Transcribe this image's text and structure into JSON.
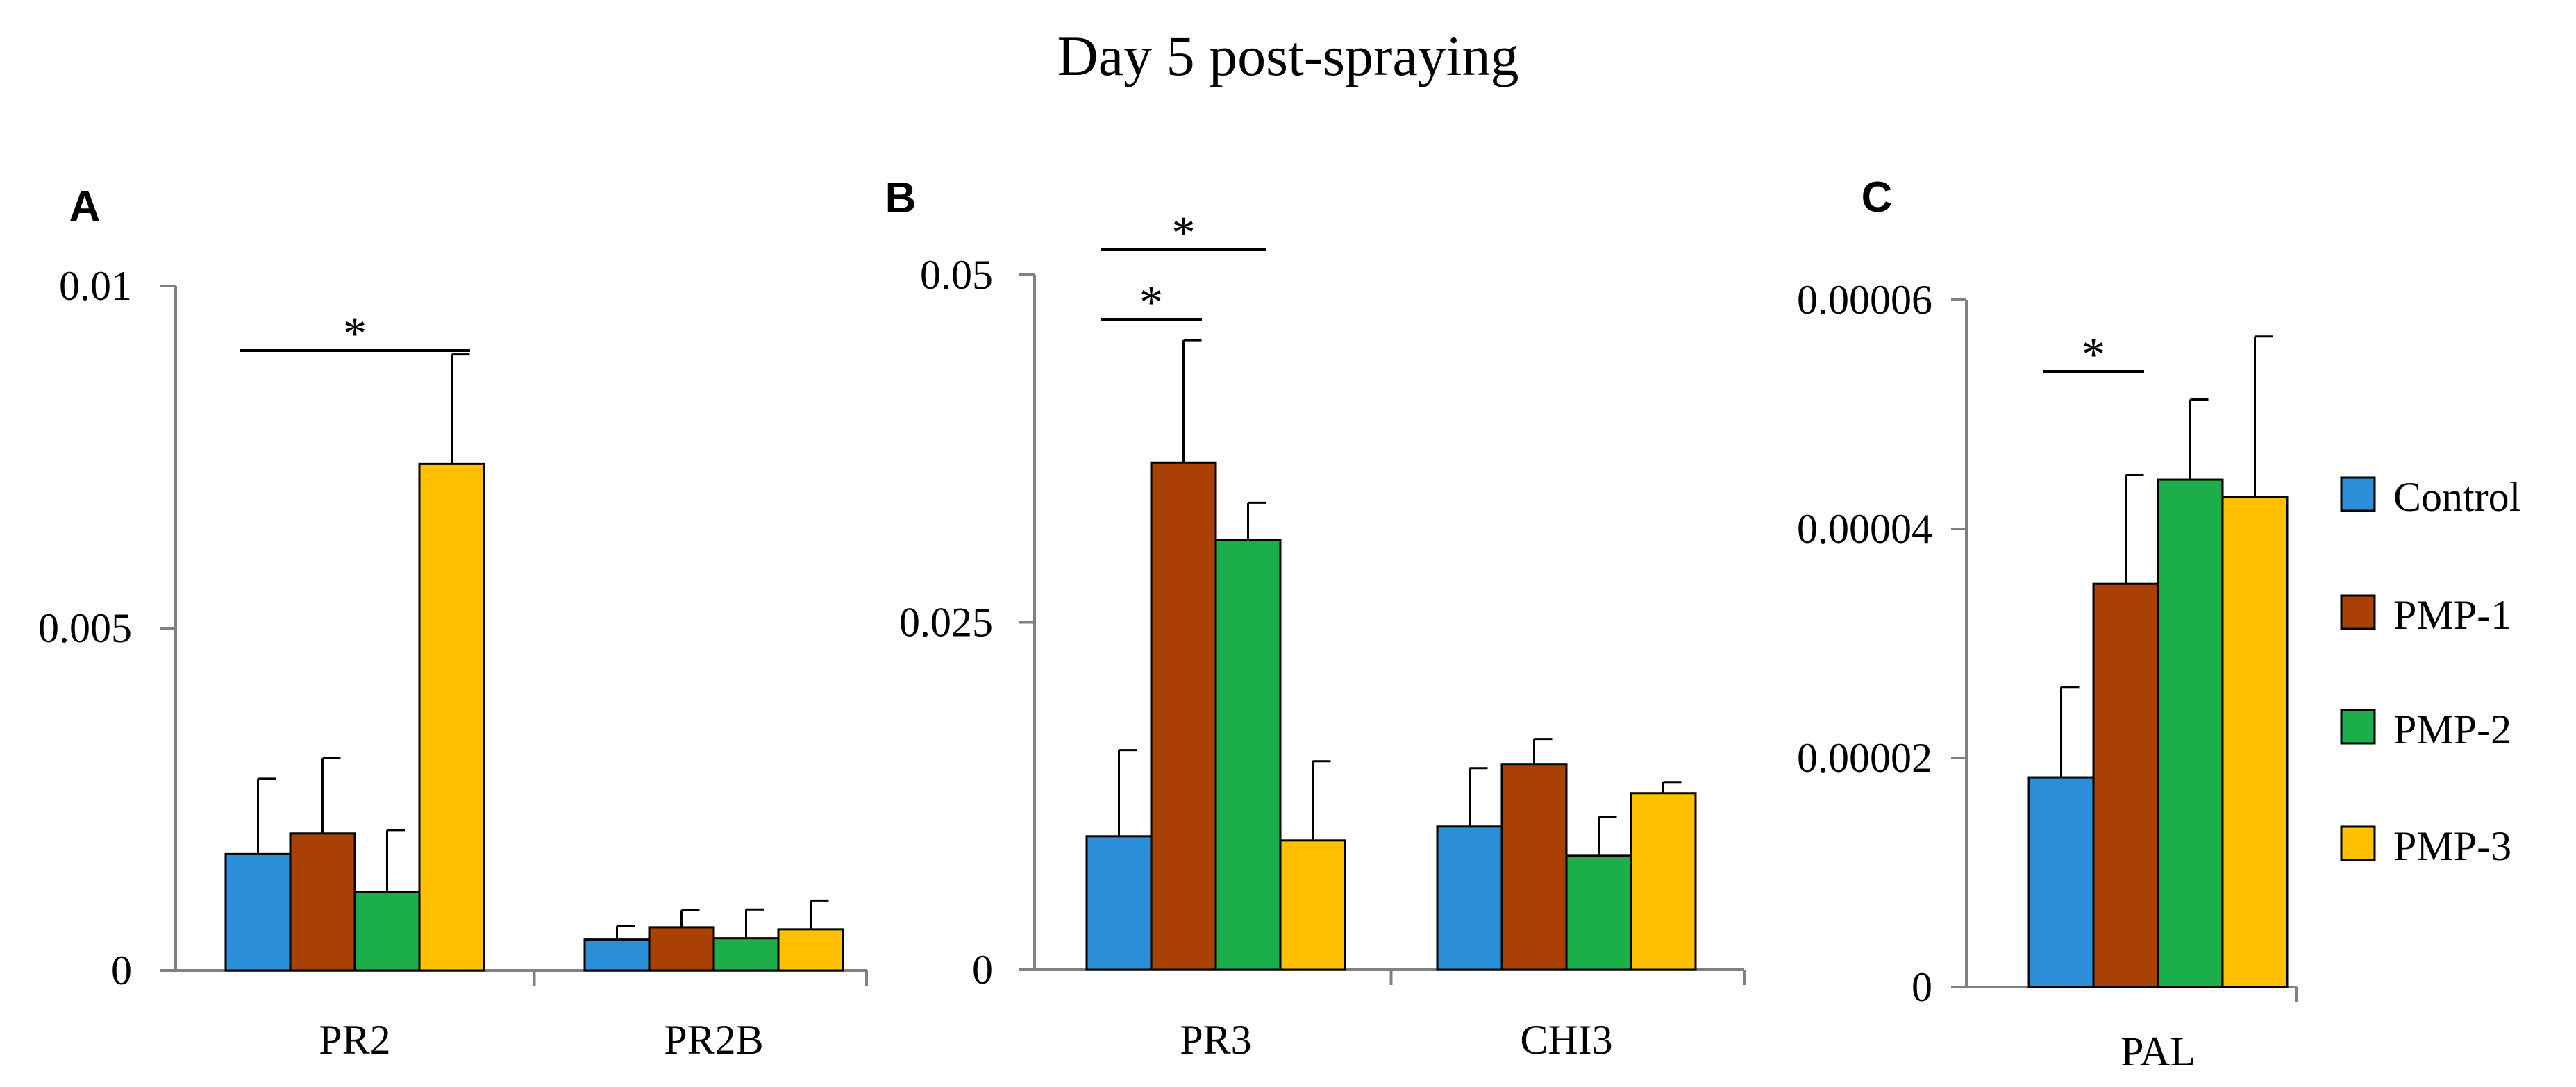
{
  "title": "Day 5 post-spraying",
  "legend": {
    "placement": "right",
    "entries": [
      {
        "name": "Control",
        "color": "#2B8FD8"
      },
      {
        "name": "PMP-1",
        "color": "#A94104"
      },
      {
        "name": "PMP-2",
        "color": "#1BAE4A"
      },
      {
        "name": "PMP-3",
        "color": "#FFC000"
      }
    ]
  },
  "chart_data": [
    {
      "panel_label": "A",
      "type": "bar",
      "categories": [
        "PR2",
        "PR2B"
      ],
      "ylim": [
        0,
        0.01
      ],
      "yticks": [
        "0",
        "0.005",
        "0.01"
      ],
      "grid": false,
      "series": [
        {
          "name": "Control",
          "values": [
            0.0017,
            0.00045
          ],
          "errors": [
            0.0011,
            0.0002
          ]
        },
        {
          "name": "PMP-1",
          "values": [
            0.002,
            0.00063
          ],
          "errors": [
            0.0011,
            0.00025
          ]
        },
        {
          "name": "PMP-2",
          "values": [
            0.00115,
            0.00047
          ],
          "errors": [
            0.0009,
            0.00042
          ]
        },
        {
          "name": "PMP-3",
          "values": [
            0.0074,
            0.0006
          ],
          "errors": [
            0.0016,
            0.00042
          ]
        }
      ],
      "significance": [
        {
          "category": "PR2",
          "from": "Control",
          "to": "PMP-3",
          "label": "*"
        }
      ]
    },
    {
      "panel_label": "B",
      "type": "bar",
      "categories": [
        "PR3",
        "CHI3"
      ],
      "ylim": [
        0,
        0.05
      ],
      "yticks": [
        "0",
        "0.025",
        "0.05"
      ],
      "grid": false,
      "series": [
        {
          "name": "Control",
          "values": [
            0.0096,
            0.0103
          ],
          "errors": [
            0.0062,
            0.0042
          ]
        },
        {
          "name": "PMP-1",
          "values": [
            0.0365,
            0.0148
          ],
          "errors": [
            0.0088,
            0.0018
          ]
        },
        {
          "name": "PMP-2",
          "values": [
            0.0309,
            0.0082
          ],
          "errors": [
            0.0027,
            0.0028
          ]
        },
        {
          "name": "PMP-3",
          "values": [
            0.0093,
            0.0127
          ],
          "errors": [
            0.0057,
            0.0008
          ]
        }
      ],
      "significance": [
        {
          "category": "PR3",
          "from": "Control",
          "to": "PMP-1",
          "label": "*"
        },
        {
          "category": "PR3",
          "from": "Control",
          "to": "PMP-2",
          "label": "*"
        }
      ]
    },
    {
      "panel_label": "C",
      "type": "bar",
      "categories": [
        "PAL"
      ],
      "ylim": [
        0,
        6e-05
      ],
      "yticks": [
        "0",
        "0.00002",
        "0.00004",
        "0.00006"
      ],
      "grid": false,
      "series": [
        {
          "name": "Control",
          "values": [
            1.83e-05
          ],
          "errors": [
            7.9e-06
          ]
        },
        {
          "name": "PMP-1",
          "values": [
            3.52e-05
          ],
          "errors": [
            9.5e-06
          ]
        },
        {
          "name": "PMP-2",
          "values": [
            4.43e-05
          ],
          "errors": [
            7e-06
          ]
        },
        {
          "name": "PMP-3",
          "values": [
            4.28e-05
          ],
          "errors": [
            1.4e-05
          ]
        }
      ],
      "significance": [
        {
          "category": "PAL",
          "from": "Control",
          "to": "PMP-1",
          "label": "*"
        }
      ]
    }
  ]
}
